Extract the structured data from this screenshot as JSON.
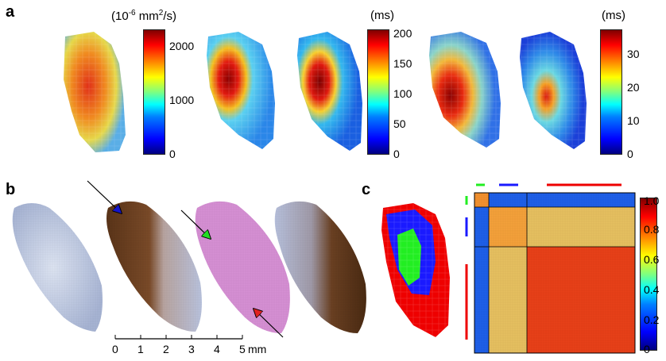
{
  "panels": {
    "a": {
      "label": "a",
      "colorbars": [
        {
          "unit_prefix": "(10",
          "unit_exp": "-6",
          "unit_mid": " mm",
          "unit_exp2": "2",
          "unit_suffix": "/s)",
          "ticks": [
            "2000",
            "1000",
            "0"
          ]
        },
        {
          "unit": "(ms)",
          "ticks": [
            "200",
            "150",
            "100",
            "50",
            "0"
          ]
        },
        {
          "unit": "(ms)",
          "ticks": [
            "30",
            "20",
            "10",
            "0"
          ]
        }
      ]
    },
    "b": {
      "label": "b",
      "scalebar": {
        "ticks": [
          "0",
          "1",
          "2",
          "3",
          "4",
          "5"
        ],
        "unit": "mm"
      }
    },
    "c": {
      "label": "c",
      "colorbar_ticks": [
        "1.0",
        "0.8",
        "0.6",
        "0.4",
        "0.2",
        "0"
      ]
    }
  },
  "colors": {
    "cluster_red": "#ee0000",
    "cluster_blue": "#1a1aff",
    "cluster_green": "#22ee22",
    "stain_blue": "#aebad8",
    "stain_brown": "#6b4124",
    "stain_pink": "#d890d6",
    "arrow_blue": "#1515c8",
    "arrow_green": "#22dd22",
    "arrow_red": "#e02020"
  }
}
